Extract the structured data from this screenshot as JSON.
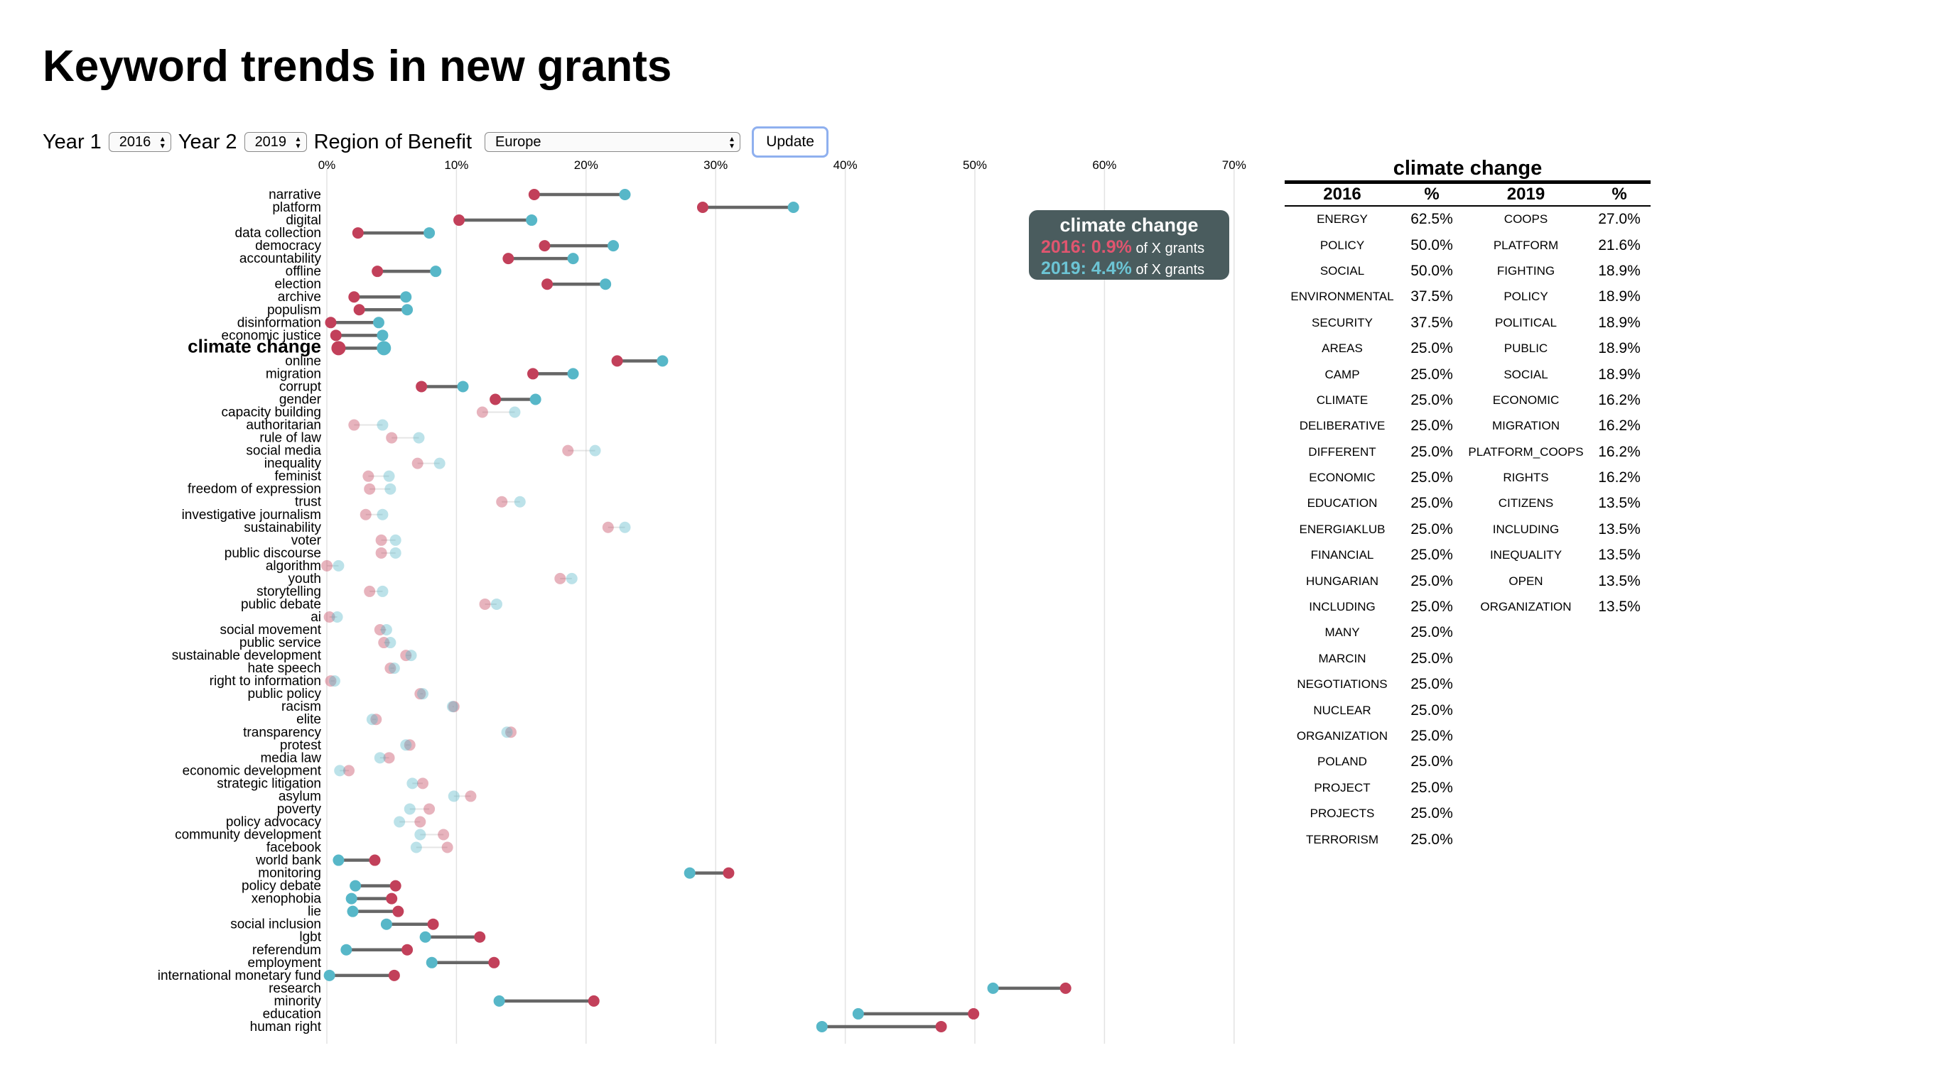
{
  "page": {
    "title": "Keyword trends in new grants"
  },
  "controls": {
    "year1_label": "Year 1",
    "year1_value": "2016",
    "year2_label": "Year 2",
    "year2_value": "2019",
    "region_label": "Region of Benefit",
    "region_value": "Europe",
    "update_label": "Update"
  },
  "tooltip": {
    "title": "climate change",
    "line1_value": "2016: 0.9%",
    "line1_suffix": "of X grants",
    "line2_value": "2019: 4.4%",
    "line2_suffix": "of X grants"
  },
  "colors": {
    "year1": "#c2405a",
    "year2": "#57b7c8",
    "connector": "#666666",
    "tooltip_bg": "#4a5c5e"
  },
  "chart_data": {
    "type": "dumbbell",
    "x_ticks": [
      "0%",
      "10%",
      "20%",
      "30%",
      "40%",
      "50%",
      "60%",
      "70%"
    ],
    "xlim": [
      0,
      70
    ],
    "series_names": [
      "2016",
      "2019"
    ],
    "highlighted": "climate change",
    "rows": [
      {
        "keyword": "narrative",
        "v1": 16.0,
        "v2": 23.0,
        "faded": false
      },
      {
        "keyword": "platform",
        "v1": 29.0,
        "v2": 36.0,
        "faded": false
      },
      {
        "keyword": "digital",
        "v1": 10.2,
        "v2": 15.8,
        "faded": false
      },
      {
        "keyword": "data collection",
        "v1": 2.4,
        "v2": 7.9,
        "faded": false
      },
      {
        "keyword": "democracy",
        "v1": 16.8,
        "v2": 22.1,
        "faded": false
      },
      {
        "keyword": "accountability",
        "v1": 14.0,
        "v2": 19.0,
        "faded": false
      },
      {
        "keyword": "offline",
        "v1": 3.9,
        "v2": 8.4,
        "faded": false
      },
      {
        "keyword": "election",
        "v1": 17.0,
        "v2": 21.5,
        "faded": false
      },
      {
        "keyword": "archive",
        "v1": 2.1,
        "v2": 6.1,
        "faded": false
      },
      {
        "keyword": "populism",
        "v1": 2.5,
        "v2": 6.2,
        "faded": false
      },
      {
        "keyword": "disinformation",
        "v1": 0.3,
        "v2": 4.0,
        "faded": false
      },
      {
        "keyword": "economic justice",
        "v1": 0.7,
        "v2": 4.3,
        "faded": false
      },
      {
        "keyword": "climate change",
        "v1": 0.9,
        "v2": 4.4,
        "faded": false
      },
      {
        "keyword": "online",
        "v1": 22.4,
        "v2": 25.9,
        "faded": false
      },
      {
        "keyword": "migration",
        "v1": 15.9,
        "v2": 19.0,
        "faded": false
      },
      {
        "keyword": "corrupt",
        "v1": 7.3,
        "v2": 10.5,
        "faded": false
      },
      {
        "keyword": "gender",
        "v1": 13.0,
        "v2": 16.1,
        "faded": false
      },
      {
        "keyword": "capacity building",
        "v1": 12.0,
        "v2": 14.5,
        "faded": true
      },
      {
        "keyword": "authoritarian",
        "v1": 2.1,
        "v2": 4.3,
        "faded": true
      },
      {
        "keyword": "rule of law",
        "v1": 5.0,
        "v2": 7.1,
        "faded": true
      },
      {
        "keyword": "social media",
        "v1": 18.6,
        "v2": 20.7,
        "faded": true
      },
      {
        "keyword": "inequality",
        "v1": 7.0,
        "v2": 8.7,
        "faded": true
      },
      {
        "keyword": "feminist",
        "v1": 3.2,
        "v2": 4.8,
        "faded": true
      },
      {
        "keyword": "freedom of expression",
        "v1": 3.3,
        "v2": 4.9,
        "faded": true
      },
      {
        "keyword": "trust",
        "v1": 13.5,
        "v2": 14.9,
        "faded": true
      },
      {
        "keyword": "investigative journalism",
        "v1": 3.0,
        "v2": 4.3,
        "faded": true
      },
      {
        "keyword": "sustainability",
        "v1": 21.7,
        "v2": 23.0,
        "faded": true
      },
      {
        "keyword": "voter",
        "v1": 4.2,
        "v2": 5.3,
        "faded": true
      },
      {
        "keyword": "public discourse",
        "v1": 4.2,
        "v2": 5.3,
        "faded": true
      },
      {
        "keyword": "algorithm",
        "v1": 0.0,
        "v2": 0.9,
        "faded": true
      },
      {
        "keyword": "youth",
        "v1": 18.0,
        "v2": 18.9,
        "faded": true
      },
      {
        "keyword": "storytelling",
        "v1": 3.3,
        "v2": 4.3,
        "faded": true
      },
      {
        "keyword": "public debate",
        "v1": 12.2,
        "v2": 13.1,
        "faded": true
      },
      {
        "keyword": "ai",
        "v1": 0.2,
        "v2": 0.8,
        "faded": true
      },
      {
        "keyword": "social movement",
        "v1": 4.1,
        "v2": 4.6,
        "faded": true
      },
      {
        "keyword": "public service",
        "v1": 4.4,
        "v2": 4.9,
        "faded": true
      },
      {
        "keyword": "sustainable development",
        "v1": 6.1,
        "v2": 6.5,
        "faded": true
      },
      {
        "keyword": "hate speech",
        "v1": 4.9,
        "v2": 5.2,
        "faded": true
      },
      {
        "keyword": "right to information",
        "v1": 0.3,
        "v2": 0.6,
        "faded": true
      },
      {
        "keyword": "public policy",
        "v1": 7.2,
        "v2": 7.4,
        "faded": true
      },
      {
        "keyword": "racism",
        "v1": 9.8,
        "v2": 9.7,
        "faded": true
      },
      {
        "keyword": "elite",
        "v1": 3.8,
        "v2": 3.5,
        "faded": true
      },
      {
        "keyword": "transparency",
        "v1": 14.2,
        "v2": 13.9,
        "faded": true
      },
      {
        "keyword": "protest",
        "v1": 6.4,
        "v2": 6.1,
        "faded": true
      },
      {
        "keyword": "media law",
        "v1": 4.8,
        "v2": 4.1,
        "faded": true
      },
      {
        "keyword": "economic development",
        "v1": 1.7,
        "v2": 1.0,
        "faded": true
      },
      {
        "keyword": "strategic litigation",
        "v1": 7.4,
        "v2": 6.6,
        "faded": true
      },
      {
        "keyword": "asylum",
        "v1": 11.1,
        "v2": 9.8,
        "faded": true
      },
      {
        "keyword": "poverty",
        "v1": 7.9,
        "v2": 6.4,
        "faded": true
      },
      {
        "keyword": "policy advocacy",
        "v1": 7.2,
        "v2": 5.6,
        "faded": true
      },
      {
        "keyword": "community development",
        "v1": 9.0,
        "v2": 7.2,
        "faded": true
      },
      {
        "keyword": "facebook",
        "v1": 9.3,
        "v2": 6.9,
        "faded": true
      },
      {
        "keyword": "world bank",
        "v1": 3.7,
        "v2": 0.9,
        "faded": false
      },
      {
        "keyword": "monitoring",
        "v1": 31.0,
        "v2": 28.0,
        "faded": false
      },
      {
        "keyword": "policy debate",
        "v1": 5.3,
        "v2": 2.2,
        "faded": false
      },
      {
        "keyword": "xenophobia",
        "v1": 5.0,
        "v2": 1.9,
        "faded": false
      },
      {
        "keyword": "lie",
        "v1": 5.5,
        "v2": 2.0,
        "faded": false
      },
      {
        "keyword": "social inclusion",
        "v1": 8.2,
        "v2": 4.6,
        "faded": false
      },
      {
        "keyword": "lgbt",
        "v1": 11.8,
        "v2": 7.6,
        "faded": false
      },
      {
        "keyword": "referendum",
        "v1": 6.2,
        "v2": 1.5,
        "faded": false
      },
      {
        "keyword": "employment",
        "v1": 12.9,
        "v2": 8.1,
        "faded": false
      },
      {
        "keyword": "international monetary fund",
        "v1": 5.2,
        "v2": 0.2,
        "faded": false
      },
      {
        "keyword": "research",
        "v1": 57.0,
        "v2": 51.4,
        "faded": false
      },
      {
        "keyword": "minority",
        "v1": 20.6,
        "v2": 13.3,
        "faded": false
      },
      {
        "keyword": "education",
        "v1": 49.9,
        "v2": 41.0,
        "faded": false
      },
      {
        "keyword": "human right",
        "v1": 47.4,
        "v2": 38.2,
        "faded": false
      }
    ]
  },
  "table": {
    "title": "climate change",
    "headers": [
      "2016",
      "%",
      "2019",
      "%"
    ],
    "rows": [
      [
        "ENERGY",
        "62.5%",
        "COOPS",
        "27.0%"
      ],
      [
        "POLICY",
        "50.0%",
        "PLATFORM",
        "21.6%"
      ],
      [
        "SOCIAL",
        "50.0%",
        "FIGHTING",
        "18.9%"
      ],
      [
        "ENVIRONMENTAL",
        "37.5%",
        "POLICY",
        "18.9%"
      ],
      [
        "SECURITY",
        "37.5%",
        "POLITICAL",
        "18.9%"
      ],
      [
        "AREAS",
        "25.0%",
        "PUBLIC",
        "18.9%"
      ],
      [
        "CAMP",
        "25.0%",
        "SOCIAL",
        "18.9%"
      ],
      [
        "CLIMATE",
        "25.0%",
        "ECONOMIC",
        "16.2%"
      ],
      [
        "DELIBERATIVE",
        "25.0%",
        "MIGRATION",
        "16.2%"
      ],
      [
        "DIFFERENT",
        "25.0%",
        "PLATFORM_COOPS",
        "16.2%"
      ],
      [
        "ECONOMIC",
        "25.0%",
        "RIGHTS",
        "16.2%"
      ],
      [
        "EDUCATION",
        "25.0%",
        "CITIZENS",
        "13.5%"
      ],
      [
        "ENERGIAKLUB",
        "25.0%",
        "INCLUDING",
        "13.5%"
      ],
      [
        "FINANCIAL",
        "25.0%",
        "INEQUALITY",
        "13.5%"
      ],
      [
        "HUNGARIAN",
        "25.0%",
        "OPEN",
        "13.5%"
      ],
      [
        "INCLUDING",
        "25.0%",
        "ORGANIZATION",
        "13.5%"
      ],
      [
        "MANY",
        "25.0%",
        "",
        ""
      ],
      [
        "MARCIN",
        "25.0%",
        "",
        ""
      ],
      [
        "NEGOTIATIONS",
        "25.0%",
        "",
        ""
      ],
      [
        "NUCLEAR",
        "25.0%",
        "",
        ""
      ],
      [
        "ORGANIZATION",
        "25.0%",
        "",
        ""
      ],
      [
        "POLAND",
        "25.0%",
        "",
        ""
      ],
      [
        "PROJECT",
        "25.0%",
        "",
        ""
      ],
      [
        "PROJECTS",
        "25.0%",
        "",
        ""
      ],
      [
        "TERRORISM",
        "25.0%",
        "",
        ""
      ]
    ]
  }
}
